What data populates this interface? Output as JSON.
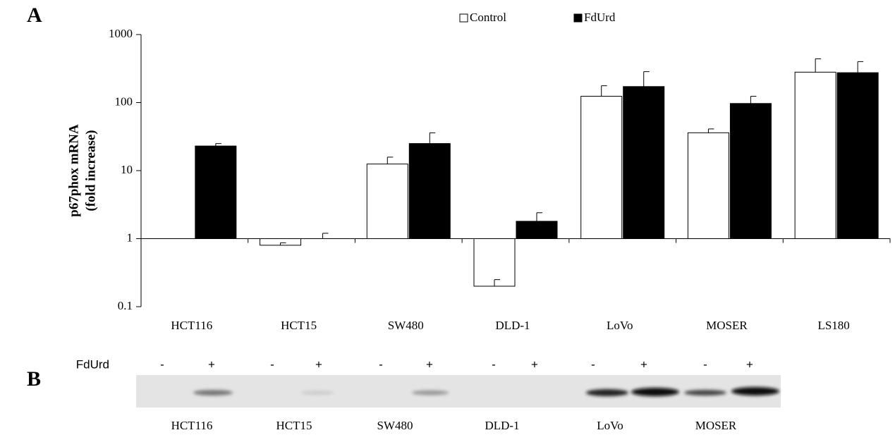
{
  "chart_data": {
    "type": "bar",
    "panel_label": "A",
    "ylabel": [
      "p67phox mRNA",
      "(fold increase)"
    ],
    "categories": [
      "HCT116",
      "HCT15",
      "SW480",
      "DLD-1",
      "LoVo",
      "MOSER",
      "LS180"
    ],
    "series": [
      {
        "name": "Control",
        "color": "#ffffff",
        "values": [
          1,
          0.8,
          12.5,
          0.2,
          124,
          36,
          280
        ],
        "errors": [
          null,
          0.07,
          3.3,
          0.05,
          53,
          5,
          160
        ]
      },
      {
        "name": "FdUrd",
        "color": "#000000",
        "values": [
          23,
          1,
          25,
          1.8,
          172,
          97,
          275
        ],
        "errors": [
          2,
          0.2,
          11,
          0.6,
          113,
          27,
          125
        ]
      }
    ],
    "ylim": [
      0.1,
      1000
    ],
    "yticks": [
      0.1,
      1,
      10,
      100,
      1000
    ],
    "log_y": true,
    "bar_base": 1,
    "grid": false,
    "legend": "top"
  },
  "blot": {
    "panel_label": "B",
    "treatment_label": "FdUrd",
    "lanes": [
      "-",
      "+",
      "-",
      "+",
      "-",
      "+",
      "-",
      "+",
      "-",
      "+",
      "-",
      "+"
    ],
    "cell_lines": [
      "HCT116",
      "HCT15",
      "SW480",
      "DLD-1",
      "LoVo",
      "MOSER"
    ]
  }
}
